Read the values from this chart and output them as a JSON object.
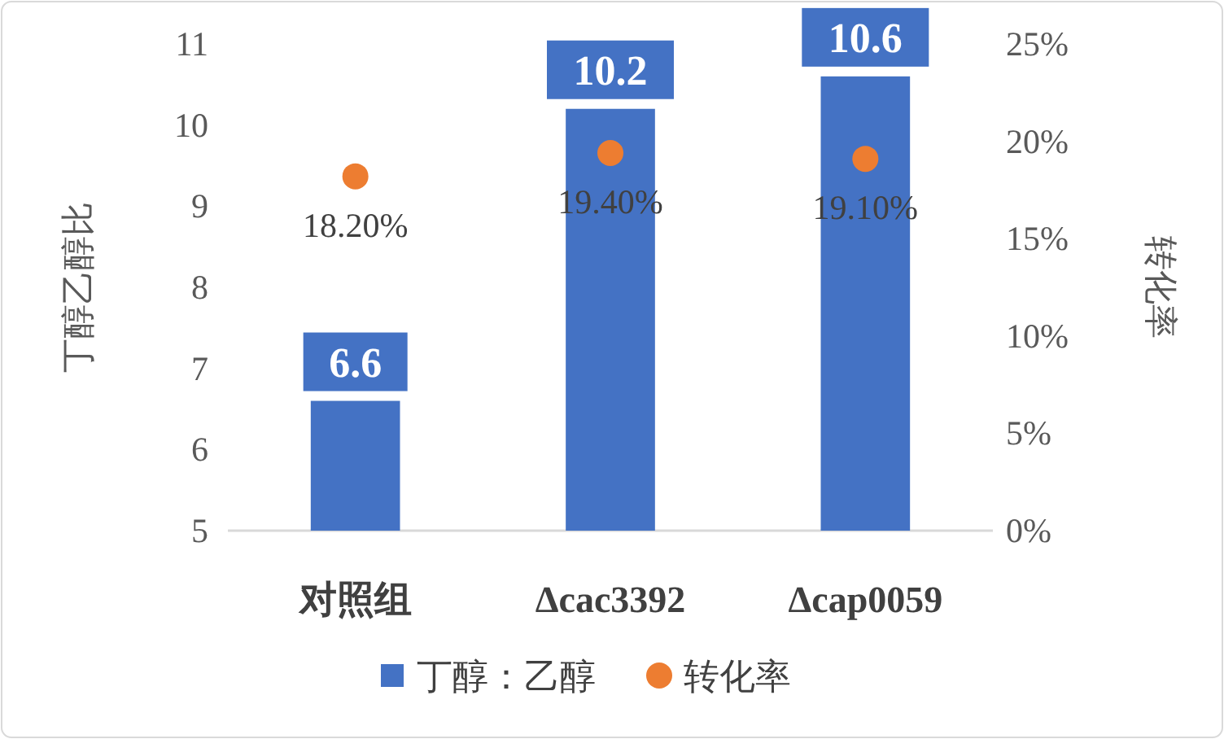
{
  "chart_data": {
    "type": "bar",
    "categories": [
      "对照组",
      "Δcac3392",
      "Δcap0059"
    ],
    "series": [
      {
        "name": "丁醇：乙醇",
        "color": "#4472c4",
        "values": [
          6.6,
          10.2,
          10.6
        ],
        "value_labels": [
          "6.6",
          "10.2",
          "10.6"
        ]
      },
      {
        "name": "转化率",
        "type": "scatter",
        "axis": "y2",
        "marker": "circle",
        "color": "#ed7d31",
        "values": [
          18.2,
          19.4,
          19.1
        ],
        "value_labels": [
          "18.20%",
          "19.40%",
          "19.10%"
        ]
      }
    ],
    "ylabel": "丁醇乙醇比",
    "y2label": "转化率",
    "ylim": [
      5,
      11
    ],
    "yticks": [
      5,
      6,
      7,
      8,
      9,
      10,
      11
    ],
    "y2lim": [
      0,
      25
    ],
    "y2ticks": [
      {
        "value": 0,
        "label": "0%"
      },
      {
        "value": 5,
        "label": "5%"
      },
      {
        "value": 10,
        "label": "10%"
      },
      {
        "value": 15,
        "label": "15%"
      },
      {
        "value": 20,
        "label": "20%"
      },
      {
        "value": 25,
        "label": "25%"
      }
    ],
    "legend": "bottom"
  }
}
